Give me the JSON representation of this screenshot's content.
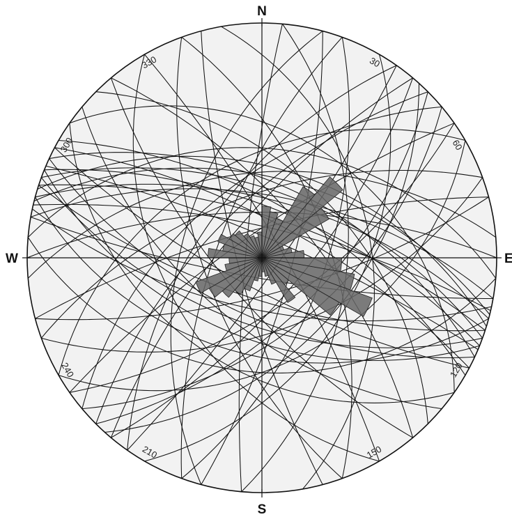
{
  "diagram": {
    "type": "stereonet-great-circles-with-rose",
    "cardinals": {
      "north": "N",
      "south": "S",
      "west": "W",
      "east": "E"
    },
    "degree_labels": [
      {
        "az": 30,
        "text": "30"
      },
      {
        "az": 60,
        "text": "60"
      },
      {
        "az": 120,
        "text": "120"
      },
      {
        "az": 150,
        "text": "150"
      },
      {
        "az": 210,
        "text": "210"
      },
      {
        "az": 240,
        "text": "240"
      },
      {
        "az": 300,
        "text": "300"
      },
      {
        "az": 330,
        "text": "330"
      }
    ],
    "colors": {
      "background": "#f2f2f2",
      "lines": "#111111",
      "rose_fill": "#666666"
    },
    "great_circles": [
      {
        "strike": 285,
        "dip": 62
      },
      {
        "strike": 290,
        "dip": 58
      },
      {
        "strike": 288,
        "dip": 70
      },
      {
        "strike": 292,
        "dip": 66
      },
      {
        "strike": 295,
        "dip": 55
      },
      {
        "strike": 283,
        "dip": 75
      },
      {
        "strike": 287,
        "dip": 48
      },
      {
        "strike": 298,
        "dip": 72
      },
      {
        "strike": 280,
        "dip": 60
      },
      {
        "strike": 293,
        "dip": 80
      },
      {
        "strike": 300,
        "dip": 64
      },
      {
        "strike": 284,
        "dip": 52
      },
      {
        "strike": 105,
        "dip": 45
      },
      {
        "strike": 110,
        "dip": 58
      },
      {
        "strike": 108,
        "dip": 70
      },
      {
        "strike": 112,
        "dip": 52
      },
      {
        "strike": 102,
        "dip": 65
      },
      {
        "strike": 115,
        "dip": 62
      },
      {
        "strike": 118,
        "dip": 75
      },
      {
        "strike": 100,
        "dip": 80
      },
      {
        "strike": 45,
        "dip": 60
      },
      {
        "strike": 40,
        "dip": 70
      },
      {
        "strike": 50,
        "dip": 55
      },
      {
        "strike": 35,
        "dip": 82
      },
      {
        "strike": 42,
        "dip": 48
      },
      {
        "strike": 55,
        "dip": 66
      },
      {
        "strike": 225,
        "dip": 65
      },
      {
        "strike": 230,
        "dip": 55
      },
      {
        "strike": 220,
        "dip": 72
      },
      {
        "strike": 235,
        "dip": 78
      },
      {
        "strike": 215,
        "dip": 60
      },
      {
        "strike": 20,
        "dip": 60
      },
      {
        "strike": 15,
        "dip": 75
      },
      {
        "strike": 200,
        "dip": 68
      },
      {
        "strike": 195,
        "dip": 52
      },
      {
        "strike": 350,
        "dip": 40
      },
      {
        "strike": 340,
        "dip": 58
      },
      {
        "strike": 160,
        "dip": 62
      },
      {
        "strike": 165,
        "dip": 78
      },
      {
        "strike": 150,
        "dip": 45
      },
      {
        "strike": 140,
        "dip": 70
      },
      {
        "strike": 320,
        "dip": 66
      },
      {
        "strike": 315,
        "dip": 50
      },
      {
        "strike": 70,
        "dip": 55
      },
      {
        "strike": 75,
        "dip": 72
      },
      {
        "strike": 250,
        "dip": 60
      },
      {
        "strike": 255,
        "dip": 76
      },
      {
        "strike": 265,
        "dip": 50
      },
      {
        "strike": 270,
        "dip": 68
      },
      {
        "strike": 130,
        "dip": 58
      },
      {
        "strike": 125,
        "dip": 40
      },
      {
        "strike": 305,
        "dip": 35
      },
      {
        "strike": 60,
        "dip": 42
      },
      {
        "strike": 240,
        "dip": 45
      },
      {
        "strike": 5,
        "dip": 50
      },
      {
        "strike": 185,
        "dip": 82
      },
      {
        "strike": 95,
        "dip": 38
      },
      {
        "strike": 275,
        "dip": 40
      },
      {
        "strike": 330,
        "dip": 80
      },
      {
        "strike": 30,
        "dip": 45
      }
    ],
    "rose_petals": [
      {
        "az": 5,
        "r": 0.22
      },
      {
        "az": 15,
        "r": 0.2
      },
      {
        "az": 25,
        "r": 0.18
      },
      {
        "az": 35,
        "r": 0.35
      },
      {
        "az": 45,
        "r": 0.45
      },
      {
        "az": 55,
        "r": 0.33
      },
      {
        "az": 65,
        "r": 0.1
      },
      {
        "az": 75,
        "r": 0.13
      },
      {
        "az": 85,
        "r": 0.18
      },
      {
        "az": 95,
        "r": 0.34
      },
      {
        "az": 105,
        "r": 0.4
      },
      {
        "az": 115,
        "r": 0.5
      },
      {
        "az": 125,
        "r": 0.38
      },
      {
        "az": 135,
        "r": 0.15
      },
      {
        "az": 145,
        "r": 0.22
      },
      {
        "az": 155,
        "r": 0.12
      },
      {
        "az": 165,
        "r": 0.08
      },
      {
        "az": 175,
        "r": 0.06
      },
      {
        "az": 185,
        "r": 0.08
      },
      {
        "az": 195,
        "r": 0.1
      },
      {
        "az": 205,
        "r": 0.15
      },
      {
        "az": 215,
        "r": 0.18
      },
      {
        "az": 225,
        "r": 0.22
      },
      {
        "az": 235,
        "r": 0.26
      },
      {
        "az": 245,
        "r": 0.3
      },
      {
        "az": 255,
        "r": 0.16
      },
      {
        "az": 265,
        "r": 0.14
      },
      {
        "az": 275,
        "r": 0.23
      },
      {
        "az": 285,
        "r": 0.17
      },
      {
        "az": 295,
        "r": 0.2
      },
      {
        "az": 305,
        "r": 0.16
      },
      {
        "az": 315,
        "r": 0.15
      },
      {
        "az": 325,
        "r": 0.12
      },
      {
        "az": 335,
        "r": 0.1
      },
      {
        "az": 345,
        "r": 0.09
      },
      {
        "az": 355,
        "r": 0.11
      }
    ]
  }
}
